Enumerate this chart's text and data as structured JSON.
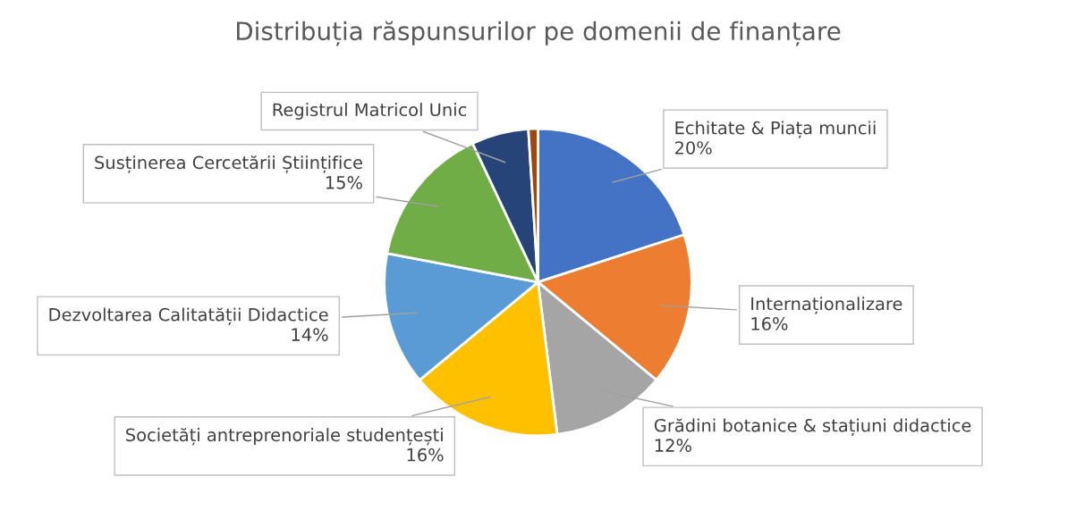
{
  "chart_data": {
    "type": "pie",
    "title": "Distribuția răspunsurilor pe domenii de finanțare",
    "categories": [
      "Echitate & Piața muncii",
      "Internaționalizare",
      "Grădini botanice & stațiuni didactice",
      "Societăți antreprenoriale studențești",
      "Dezvoltarea Calitatății Didactice",
      "Susținerea Cercetării Științifice",
      "Registrul Matricol Unic",
      null
    ],
    "values": [
      20,
      16,
      12,
      16,
      14,
      15,
      6,
      1
    ],
    "colors": [
      "#4472c4",
      "#ed7d31",
      "#a5a5a5",
      "#ffc000",
      "#5b9bd5",
      "#70ad47",
      "#264478",
      "#9e480e"
    ],
    "value_labels": [
      "20%",
      "16%",
      "12%",
      "16%",
      "14%",
      "15%",
      null,
      null
    ],
    "legend": false
  }
}
